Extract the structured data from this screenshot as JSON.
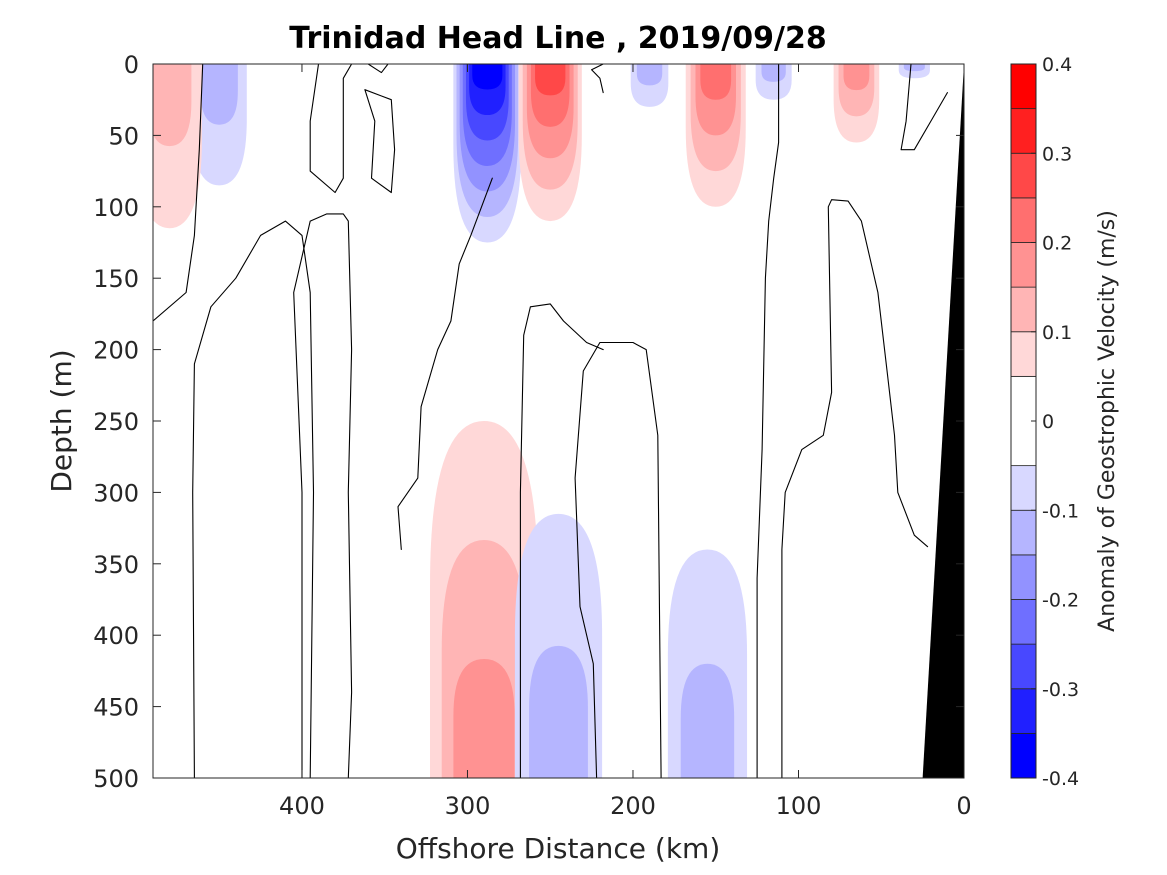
{
  "chart_data": {
    "type": "heatmap",
    "subtype": "filled-contour-section",
    "title": "Trinidad Head Line , 2019/09/28",
    "xlabel": "Offshore Distance (km)",
    "ylabel": "Depth (m)",
    "xlim": [
      490,
      0
    ],
    "xaxis_reversed": true,
    "ylim": [
      0,
      500
    ],
    "yaxis_reversed": true,
    "x_ticks": [
      400,
      300,
      200,
      100,
      0
    ],
    "y_ticks": [
      0,
      50,
      100,
      150,
      200,
      250,
      300,
      350,
      400,
      450,
      500
    ],
    "grid": false,
    "colorbar": {
      "label": "Anomaly of Geostrophic Velocity (m/s)",
      "range": [
        -0.4,
        0.4
      ],
      "ticks": [
        0.4,
        0.3,
        0.2,
        0.1,
        0,
        -0.1,
        -0.2,
        -0.3,
        -0.4
      ],
      "levels": [
        -0.4,
        -0.35,
        -0.3,
        -0.25,
        -0.2,
        -0.15,
        -0.1,
        -0.05,
        0.05,
        0.1,
        0.15,
        0.2,
        0.25,
        0.3,
        0.35,
        0.4
      ],
      "colors": [
        "#0000ff",
        "#2020ff",
        "#4848ff",
        "#6f6fff",
        "#9292ff",
        "#b5b5ff",
        "#d8d8ff",
        "#ffffff",
        "#ffd8d8",
        "#ffb5b5",
        "#ff9292",
        "#ff6f6f",
        "#ff4848",
        "#ff2020",
        "#ff0000"
      ]
    },
    "features": [
      {
        "x_center": 288,
        "depth_range": [
          0,
          125
        ],
        "peak_anomaly": -0.35
      },
      {
        "x_center": 250,
        "depth_range": [
          0,
          110
        ],
        "peak_anomaly": 0.25
      },
      {
        "x_center": 150,
        "depth_range": [
          0,
          100
        ],
        "peak_anomaly": 0.2
      },
      {
        "x_center": 65,
        "depth_range": [
          0,
          55
        ],
        "peak_anomaly": 0.15
      },
      {
        "x_center": 450,
        "depth_range": [
          0,
          85
        ],
        "peak_anomaly": -0.1
      },
      {
        "x_center": 480,
        "depth_range": [
          0,
          115
        ],
        "peak_anomaly": 0.1
      },
      {
        "x_center": 190,
        "depth_range": [
          0,
          30
        ],
        "peak_anomaly": -0.1
      },
      {
        "x_center": 115,
        "depth_range": [
          0,
          25
        ],
        "peak_anomaly": -0.1
      },
      {
        "x_center": 30,
        "depth_range": [
          0,
          10
        ],
        "peak_anomaly": -0.1
      },
      {
        "x_center": 290,
        "depth_range": [
          250,
          500
        ],
        "peak_anomaly": 0.15
      },
      {
        "x_center": 245,
        "depth_range": [
          315,
          500
        ],
        "peak_anomaly": -0.1
      },
      {
        "x_center": 155,
        "depth_range": [
          340,
          500
        ],
        "peak_anomaly": -0.1
      }
    ],
    "bathymetry": {
      "color": "#000000",
      "surface_km": 0,
      "bottom_km": 25
    }
  }
}
